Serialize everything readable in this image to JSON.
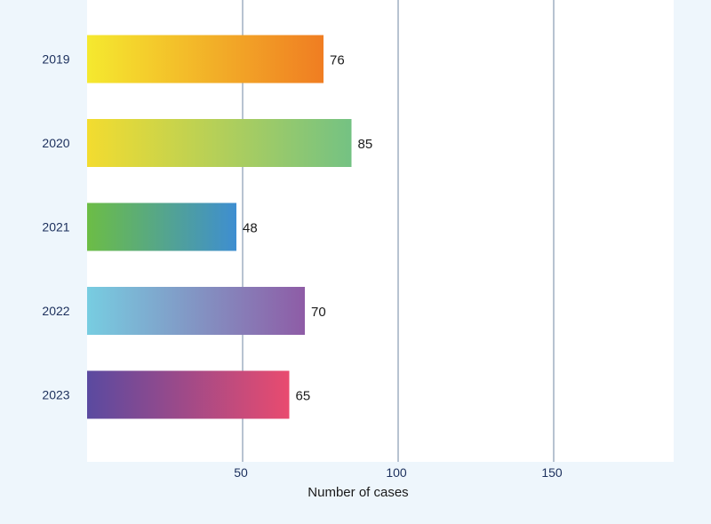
{
  "chart_data": {
    "type": "bar",
    "orientation": "horizontal",
    "categories": [
      "2019",
      "2020",
      "2021",
      "2022",
      "2023"
    ],
    "values": [
      76,
      85,
      48,
      70,
      65
    ],
    "value_labels": [
      "76",
      "85",
      "48",
      "70",
      "65"
    ],
    "title": "",
    "xlabel": "Number of cases",
    "ylabel": "",
    "xlim": [
      0,
      185
    ],
    "x_ticks": [
      50,
      100,
      150
    ],
    "x_tick_labels": [
      "50",
      "100",
      "150"
    ],
    "grid": "vertical",
    "legend": "none",
    "bar_gradients": [
      [
        "#f5e92f",
        "#f07d22"
      ],
      [
        "#f3dc2f",
        "#74c283"
      ],
      [
        "#6cbd45",
        "#3e8ed1"
      ],
      [
        "#77cde1",
        "#8e5ca6"
      ],
      [
        "#5a4aa0",
        "#e94b6f"
      ]
    ],
    "colors": {
      "page_background": "#eef6fc",
      "plot_background": "#ffffff",
      "grid_line": "#6f87a3",
      "category_label": "#1b2f5c",
      "value_label": "#1a1a1a",
      "axis_text": "#1b2f5c"
    }
  }
}
